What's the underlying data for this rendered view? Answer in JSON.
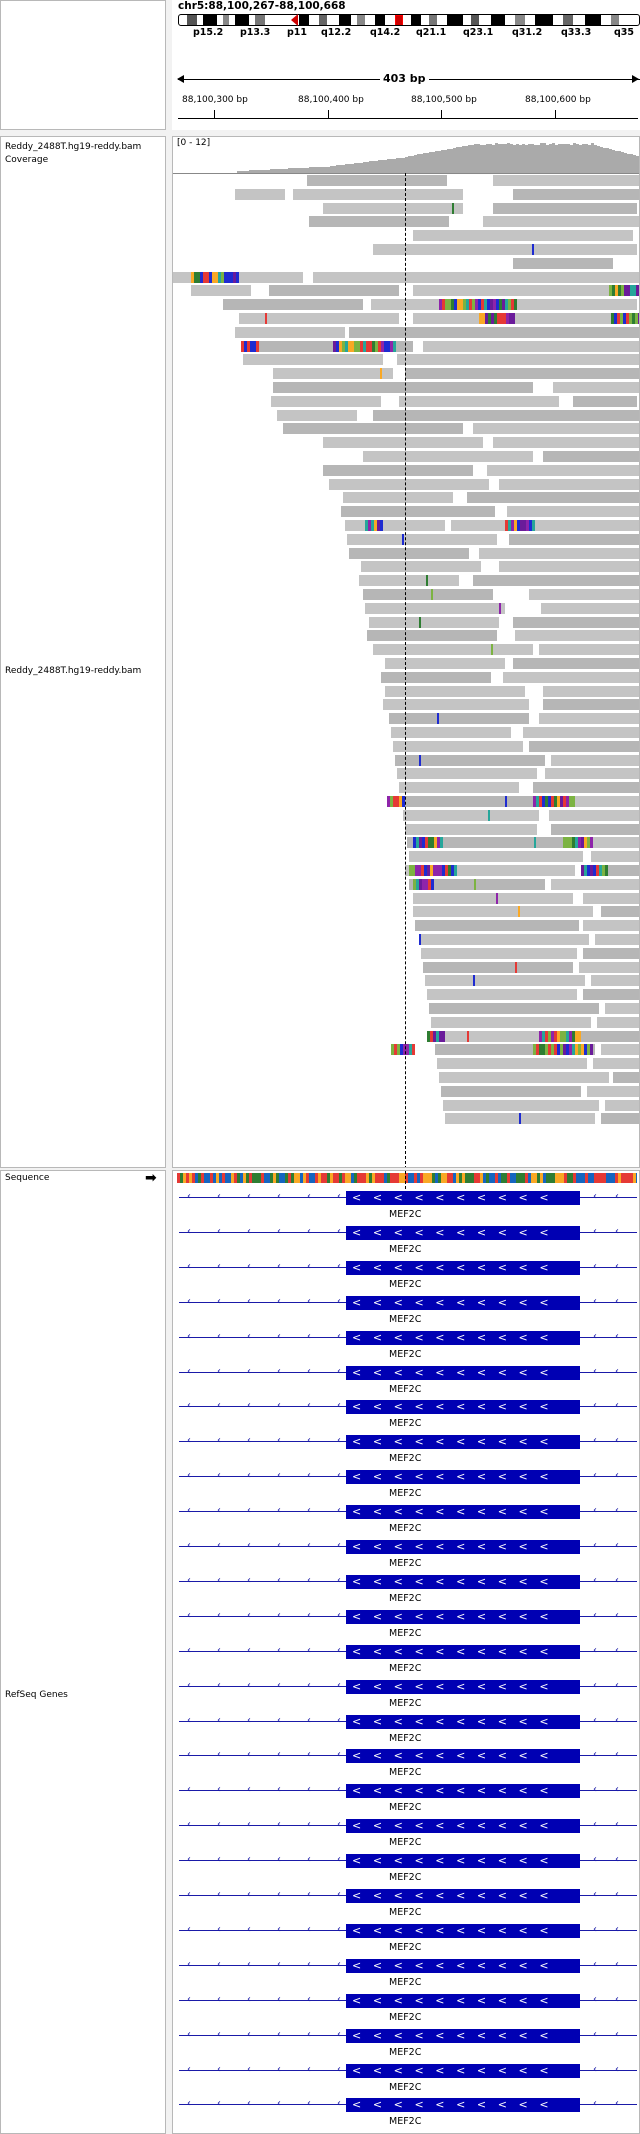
{
  "header": {
    "locus": "chr5:88,100,267-88,100,668",
    "bands": [
      "p15.2",
      "p13.3",
      "p11",
      "q12.2",
      "q14.2",
      "q21.1",
      "q23.1",
      "q31.2",
      "q33.3",
      "q35"
    ],
    "span_label": "403 bp",
    "ticks": [
      "88,100,300 bp",
      "88,100,400 bp",
      "88,100,500 bp",
      "88,100,600 bp"
    ]
  },
  "tracks": {
    "coverage_label": "Reddy_2488T.hg19-reddy.bam Coverage",
    "coverage_range": "[0 - 12]",
    "alignment_label": "Reddy_2488T.hg19-reddy.bam",
    "sequence_label": "Sequence",
    "refseq_label": "RefSeq Genes"
  },
  "genes": {
    "name": "MEF2C",
    "strand_glyph": "<",
    "row_count": 28
  },
  "colors": {
    "gene_blue": "#0000b3",
    "read_grey": "#c4c4c4",
    "mismatch": [
      "#e53935",
      "#2e7d32",
      "#7cb342",
      "#1e2bd1",
      "#8e24aa",
      "#f9a825",
      "#6a1b9a",
      "#26a69a"
    ]
  }
}
